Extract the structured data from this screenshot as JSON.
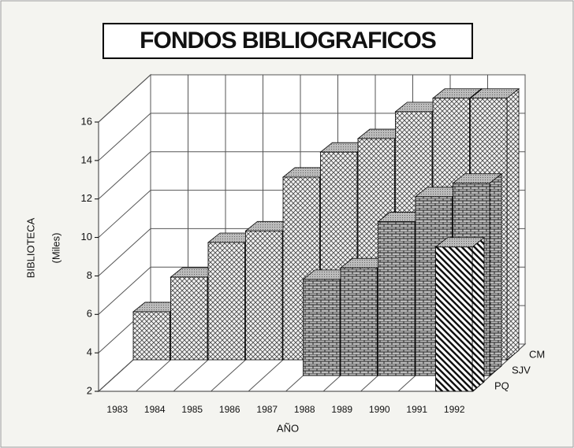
{
  "chart_data": {
    "type": "bar3d",
    "title": "FONDOS BIBLIOGRAFICOS",
    "y_label": "BIBLIOTECA",
    "y_sublabel": "(Miles)",
    "x_label": "AÑO",
    "categories": [
      "1983",
      "1984",
      "1985",
      "1986",
      "1987",
      "1988",
      "1989",
      "1990",
      "1991",
      "1992"
    ],
    "series": [
      {
        "name": "CM",
        "color": "#444444",
        "values": [
          4.5,
          6.3,
          8.1,
          8.7,
          11.5,
          12.8,
          13.5,
          14.9,
          15.6,
          15.6
        ]
      },
      {
        "name": "SJV",
        "color": "#222222",
        "values": [
          null,
          null,
          null,
          null,
          null,
          7,
          7.6,
          10,
          11.3,
          12
        ]
      },
      {
        "name": "PQ",
        "color": "#111111",
        "values": [
          null,
          null,
          null,
          null,
          null,
          null,
          null,
          null,
          null,
          9.5
        ]
      }
    ],
    "ylim": [
      2,
      16
    ],
    "yticks": [
      2,
      4,
      6,
      8,
      10,
      12,
      14,
      16
    ],
    "grid": true
  }
}
